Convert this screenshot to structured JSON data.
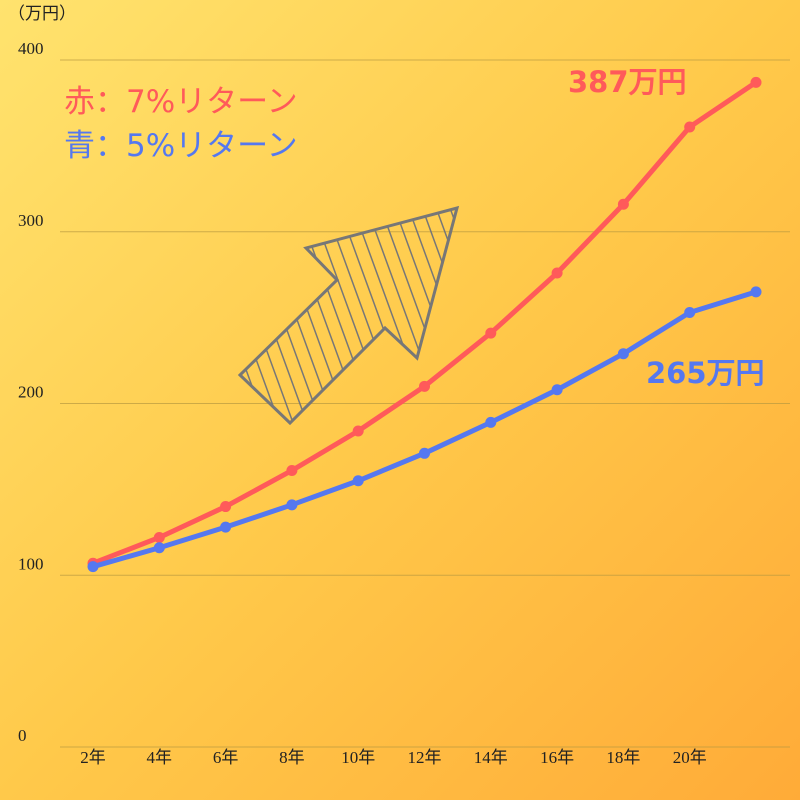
{
  "chart_data": {
    "type": "line",
    "unit_label": "（万円）",
    "categories": [
      "2年",
      "4年",
      "6年",
      "8年",
      "10年",
      "12年",
      "14年",
      "16年",
      "18年",
      "20年",
      ""
    ],
    "ylim": [
      0,
      400
    ],
    "yticks": [
      "0",
      "100",
      "200",
      "300",
      "400"
    ],
    "grid": true,
    "series": [
      {
        "key": "red",
        "legend": "赤：7%リターン",
        "color": "#ff5a5a",
        "values": [
          107,
          122,
          140,
          161,
          184,
          210,
          241,
          276,
          316,
          361,
          387
        ],
        "end_label": "387万円"
      },
      {
        "key": "blue",
        "legend": "青：5%リターン",
        "color": "#5578f0",
        "values": [
          105,
          116,
          128,
          141,
          155,
          171,
          189,
          208,
          229,
          253,
          265
        ],
        "end_label": "265万円"
      }
    ],
    "annotation": "hatched-up-right-arrow"
  }
}
